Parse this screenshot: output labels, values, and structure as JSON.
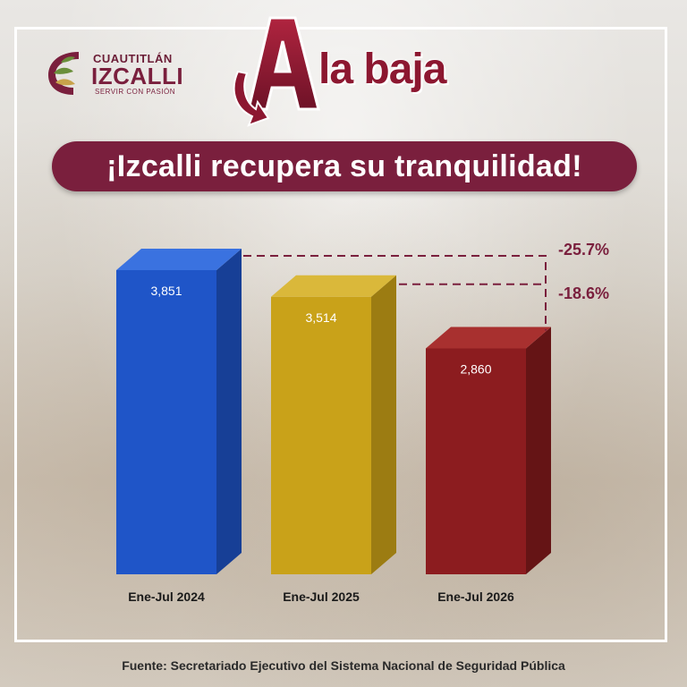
{
  "logo": {
    "line1": "CUAUTITLÁN",
    "line2": "IZCALLI",
    "line3": "SERVIR CON PASIÓN",
    "colors": {
      "primary": "#7a1f3d",
      "leaf": "#6a8f3a",
      "gold": "#c8a24a"
    }
  },
  "headline": {
    "initial": "A",
    "rest": "la baja"
  },
  "banner": {
    "text": "¡Izcalli recupera su tranquilidad!"
  },
  "chart_data": {
    "type": "bar",
    "categories": [
      "Ene-Jul 2024",
      "Ene-Jul 2025",
      "Ene-Jul 2026"
    ],
    "values": [
      3851,
      3514,
      2860
    ],
    "value_labels": [
      "3,851",
      "3,514",
      "2,860"
    ],
    "colors": [
      "#1f55c8",
      "#c9a219",
      "#8c1c1f"
    ],
    "side_colors": [
      "#173f96",
      "#9c7c12",
      "#651415"
    ],
    "top_colors": [
      "#3a72e0",
      "#dab83a",
      "#a8302f"
    ],
    "annotations": [
      "-25.7%",
      "-18.6%"
    ],
    "annotation_color": "#7a1f3d",
    "ylim": [
      0,
      3851
    ],
    "grid": false,
    "title": "",
    "xlabel": "",
    "ylabel": ""
  },
  "source": {
    "text": "Fuente: Secretariado Ejecutivo del Sistema Nacional de Seguridad Pública"
  }
}
